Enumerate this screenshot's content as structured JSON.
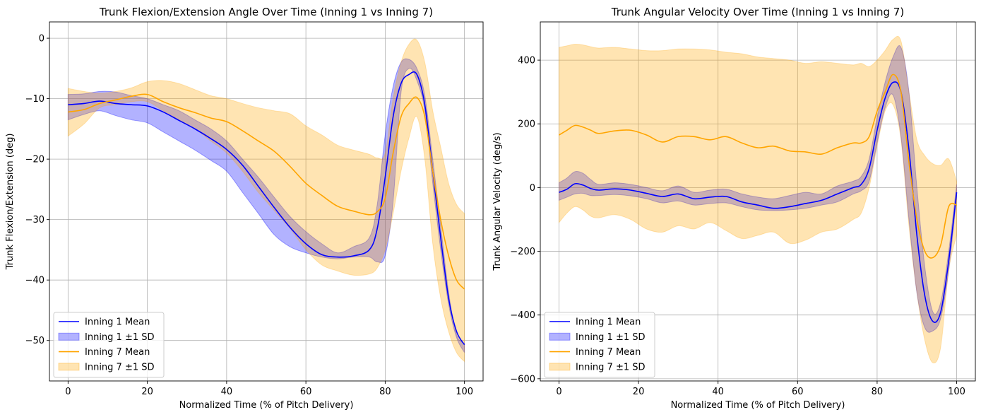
{
  "chart_data": [
    {
      "type": "line",
      "title": "Trunk Flexion/Extension Angle Over Time (Inning 1 vs Inning 7)",
      "xlabel": "Normalized Time (% of Pitch Delivery)",
      "ylabel": "Trunk Flexion/Extension (deg)",
      "xlim": [
        -4.7,
        104.7
      ],
      "ylim": [
        -56.7,
        2.7
      ],
      "xticks": [
        0,
        20,
        40,
        60,
        80,
        100
      ],
      "yticks": [
        0,
        -10,
        -20,
        -30,
        -40,
        -50
      ],
      "xtick_labels": [
        "0",
        "20",
        "40",
        "60",
        "80",
        "100"
      ],
      "ytick_labels": [
        "0",
        "−10",
        "−20",
        "−30",
        "−40",
        "−50"
      ],
      "grid": true,
      "legend_position": "lower-left",
      "legend": [
        "Inning 1 Mean",
        "Inning 1 ±1 SD",
        "Inning 7 Mean",
        "Inning 7 ±1 SD"
      ],
      "x": [
        0,
        4,
        8,
        12,
        16,
        20,
        24,
        28,
        32,
        36,
        40,
        44,
        48,
        52,
        56,
        60,
        64,
        68,
        72,
        76,
        78,
        80,
        82,
        84,
        86,
        88,
        90,
        92,
        94,
        96,
        98,
        100
      ],
      "series": [
        {
          "name": "Inning 1 Mean",
          "color": "#0000ff",
          "band_color": "#0000ff",
          "mean": [
            -11,
            -10.8,
            -10.4,
            -10.8,
            -11,
            -11.2,
            -12.2,
            -13.6,
            -15,
            -16.6,
            -18.4,
            -21,
            -24.5,
            -28,
            -31.3,
            -34,
            -35.8,
            -36.2,
            -36,
            -35,
            -31.5,
            -23,
            -13,
            -7.5,
            -6,
            -6,
            -11,
            -22,
            -33,
            -43,
            -48.5,
            -50.7
          ],
          "lower": [
            -13.5,
            -12.6,
            -12,
            -12.8,
            -13.5,
            -14,
            -15.5,
            -17,
            -18.5,
            -20.2,
            -22,
            -25.5,
            -29,
            -32.5,
            -34.5,
            -35.5,
            -36.2,
            -36.5,
            -36.2,
            -36.2,
            -37,
            -36,
            -27,
            -9,
            -5,
            -7,
            -12,
            -24,
            -35,
            -44,
            -49.5,
            -52
          ],
          "upper": [
            -9.3,
            -9.2,
            -8.8,
            -8.9,
            -9.5,
            -10,
            -11,
            -12,
            -13.5,
            -15,
            -17,
            -20,
            -23,
            -26.3,
            -29.5,
            -32,
            -34,
            -35.5,
            -34.5,
            -33,
            -27.5,
            -16,
            -8,
            -4,
            -3.5,
            -5,
            -9.5,
            -20,
            -31,
            -42,
            -49,
            -50.5
          ]
        },
        {
          "name": "Inning 7 Mean",
          "color": "#ffa500",
          "band_color": "#ffa500",
          "mean": [
            -12.2,
            -11.8,
            -10.8,
            -10.2,
            -9.6,
            -9.3,
            -10.5,
            -11.5,
            -12.3,
            -13.2,
            -13.8,
            -15.3,
            -17,
            -18.7,
            -21.2,
            -24,
            -26,
            -27.8,
            -28.6,
            -29.2,
            -28.7,
            -26.5,
            -19,
            -13,
            -10.8,
            -9.8,
            -13,
            -22,
            -30,
            -36,
            -40,
            -41.5
          ],
          "lower": [
            -16.2,
            -14.2,
            -11.5,
            -11,
            -10.5,
            -10.5,
            -12,
            -13.5,
            -15,
            -17,
            -19,
            -22,
            -25.5,
            -28.5,
            -31.5,
            -35,
            -37.5,
            -38.5,
            -39.2,
            -39,
            -38,
            -35,
            -29,
            -22,
            -16.5,
            -13,
            -20,
            -34,
            -43,
            -48.5,
            -52,
            -53.5
          ],
          "upper": [
            -8.3,
            -8.8,
            -9.1,
            -8.8,
            -8.2,
            -7.2,
            -7,
            -7.5,
            -8.5,
            -9.5,
            -10,
            -10.8,
            -11.5,
            -12,
            -12.5,
            -14.5,
            -16,
            -17.7,
            -18.5,
            -19.2,
            -19.8,
            -19,
            -10,
            -4,
            -1,
            -0.3,
            -4,
            -12,
            -18,
            -24,
            -27.5,
            -29
          ]
        }
      ]
    },
    {
      "type": "line",
      "title": "Trunk Angular Velocity Over Time (Inning 1 vs Inning 7)",
      "xlabel": "Normalized Time (% of Pitch Delivery)",
      "ylabel": "Trunk Angular Velocity (deg/s)",
      "xlim": [
        -4.7,
        104.7
      ],
      "ylim": [
        -607,
        520
      ],
      "xticks": [
        0,
        20,
        40,
        60,
        80,
        100
      ],
      "yticks": [
        400,
        200,
        0,
        -200,
        -400,
        -600
      ],
      "xtick_labels": [
        "0",
        "20",
        "40",
        "60",
        "80",
        "100"
      ],
      "ytick_labels": [
        "400",
        "200",
        "0",
        "−200",
        "−400",
        "−600"
      ],
      "grid": true,
      "legend_position": "lower-left",
      "legend": [
        "Inning 1 Mean",
        "Inning 1 ±1 SD",
        "Inning 7 Mean",
        "Inning 7 ±1 SD"
      ],
      "x": [
        0,
        2,
        4,
        6,
        8,
        10,
        14,
        18,
        22,
        26,
        30,
        34,
        38,
        42,
        46,
        50,
        54,
        58,
        62,
        66,
        70,
        74,
        76,
        78,
        80,
        82,
        84,
        86,
        88,
        90,
        92,
        94,
        96,
        98,
        100
      ],
      "series": [
        {
          "name": "Inning 1 Mean",
          "color": "#0000ff",
          "band_color": "#0000ff",
          "mean": [
            -15,
            -5,
            12,
            8,
            -3,
            -8,
            -4,
            -8,
            -18,
            -28,
            -20,
            -35,
            -30,
            -28,
            -45,
            -55,
            -65,
            -60,
            -50,
            -40,
            -20,
            0,
            10,
            60,
            180,
            280,
            330,
            300,
            120,
            -150,
            -340,
            -420,
            -390,
            -230,
            -15
          ],
          "lower": [
            -40,
            -30,
            -20,
            -18,
            -25,
            -25,
            -22,
            -26,
            -35,
            -48,
            -42,
            -55,
            -50,
            -48,
            -60,
            -70,
            -72,
            -70,
            -65,
            -55,
            -45,
            -20,
            -10,
            20,
            140,
            250,
            290,
            160,
            -100,
            -330,
            -440,
            -450,
            -410,
            -260,
            -30
          ],
          "upper": [
            15,
            30,
            50,
            45,
            25,
            10,
            15,
            10,
            0,
            -10,
            5,
            -15,
            -8,
            -5,
            -20,
            -30,
            -35,
            -25,
            -15,
            -20,
            5,
            20,
            35,
            90,
            220,
            330,
            410,
            440,
            300,
            0,
            -250,
            -390,
            -360,
            -200,
            10
          ]
        },
        {
          "name": "Inning 7 Mean",
          "color": "#ffa500",
          "band_color": "#ffa500",
          "mean": [
            165,
            180,
            195,
            190,
            180,
            170,
            178,
            180,
            165,
            143,
            160,
            160,
            150,
            160,
            140,
            125,
            130,
            115,
            112,
            105,
            125,
            140,
            140,
            160,
            240,
            300,
            355,
            300,
            80,
            -100,
            -200,
            -220,
            -180,
            -60,
            -55
          ],
          "lower": [
            -110,
            -80,
            -60,
            -70,
            -90,
            -95,
            -85,
            -100,
            -130,
            -140,
            -120,
            -130,
            -110,
            -135,
            -160,
            -150,
            -140,
            -175,
            -165,
            -140,
            -130,
            -100,
            -80,
            0,
            130,
            240,
            260,
            150,
            -120,
            -330,
            -480,
            -550,
            -500,
            -260,
            -150
          ],
          "upper": [
            440,
            445,
            450,
            448,
            442,
            438,
            440,
            435,
            430,
            430,
            435,
            435,
            432,
            425,
            420,
            410,
            405,
            400,
            390,
            395,
            390,
            385,
            390,
            380,
            400,
            430,
            465,
            460,
            300,
            150,
            100,
            75,
            70,
            90,
            20
          ]
        }
      ]
    }
  ]
}
